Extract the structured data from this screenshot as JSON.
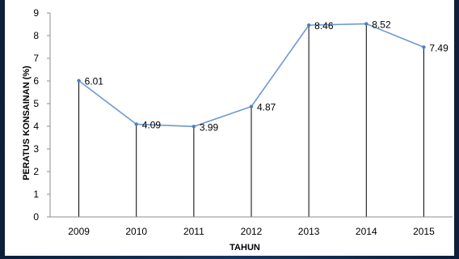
{
  "chart_data": {
    "type": "line",
    "title": "",
    "xlabel": "TAHUN",
    "ylabel": "PERATUS  KONSAINAN (%)",
    "categories": [
      "2009",
      "2010",
      "2011",
      "2012",
      "2013",
      "2014",
      "2015"
    ],
    "series": [
      {
        "values": [
          6.01,
          4.09,
          3.99,
          4.87,
          8.46,
          8.52,
          7.49
        ]
      }
    ],
    "data_labels": [
      "6.01",
      "4.09",
      "3.99",
      "4.87",
      "8.46",
      "8.52",
      "7.49"
    ],
    "yticks": [
      "0",
      "1",
      "2",
      "3",
      "4",
      "5",
      "6",
      "7",
      "8",
      "9"
    ],
    "ylim": [
      0,
      9
    ],
    "grid": false,
    "drop_lines": true,
    "line_color": "#6e99cf",
    "marker_color": "#4f7fbf",
    "axis_color": "#8c8c8c",
    "drop_line_color": "#000000"
  }
}
